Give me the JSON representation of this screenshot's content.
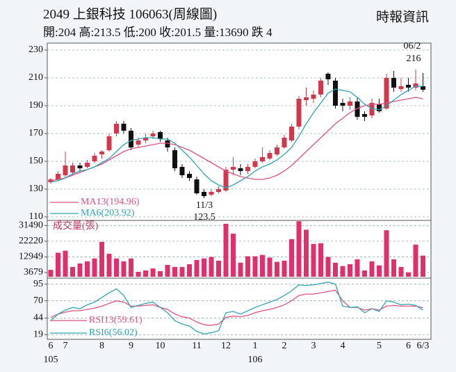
{
  "chart_data": [
    {
      "type": "candlestick",
      "title": "2049  上銀科技 106063(周線圖)",
      "subtitle": "開:204 高:213.5 低:200 收:201.5 量:13690 跌 4",
      "source": "時報資訊",
      "open": [
        135,
        137,
        140,
        142,
        147,
        146,
        150,
        155,
        158,
        170,
        177,
        172,
        162,
        165,
        168,
        171,
        165,
        158,
        146,
        141,
        137,
        128,
        126,
        128,
        129,
        144,
        145,
        143,
        146,
        150,
        152,
        155,
        160,
        165,
        175,
        194,
        195,
        198,
        213,
        208,
        192,
        190,
        193,
        184,
        183,
        191,
        188,
        210,
        202,
        205,
        203,
        204
      ],
      "high": [
        138,
        143,
        157,
        149,
        149,
        151,
        156,
        158,
        170,
        179,
        179,
        174,
        167,
        170,
        172,
        172,
        167,
        160,
        148,
        143,
        139,
        130,
        130,
        132,
        146,
        153,
        148,
        148,
        152,
        160,
        158,
        162,
        169,
        177,
        197,
        203,
        201,
        210,
        214,
        210,
        195,
        196,
        196,
        186,
        195,
        195,
        213,
        215,
        210,
        210,
        216,
        213.5
      ],
      "low": [
        134,
        136,
        138,
        140,
        143,
        145,
        149,
        152,
        157,
        168,
        170,
        158,
        160,
        163,
        166,
        164,
        157,
        143,
        138,
        136,
        126,
        123.5,
        125,
        127,
        128,
        140,
        140,
        141,
        145,
        149,
        151,
        154,
        159,
        164,
        173,
        190,
        192,
        196,
        205,
        188,
        186,
        187,
        180,
        179,
        181,
        185,
        187,
        200,
        200,
        200,
        201,
        200
      ],
      "close": [
        137,
        141,
        147,
        147,
        145,
        149,
        154,
        157,
        168,
        177,
        172,
        160,
        165,
        167,
        170,
        166,
        160,
        145,
        140,
        138,
        127,
        125,
        128,
        130,
        144,
        146,
        143,
        146,
        150,
        153,
        156,
        160,
        167,
        175,
        195,
        196,
        198,
        208,
        209,
        190,
        190,
        193,
        182,
        182,
        192,
        186,
        210,
        203,
        204,
        203,
        206,
        201.5
      ],
      "up_color": "#d2384c",
      "down_color": "#111111",
      "series": [
        {
          "name": "MA13(194.96)",
          "color": "#e05080",
          "values": [
            136,
            137,
            138,
            140,
            142,
            144,
            146,
            148,
            151,
            154,
            157,
            159,
            160,
            161,
            162,
            163,
            163,
            162,
            160,
            158,
            155,
            152,
            149,
            146,
            143,
            141,
            139,
            138,
            137,
            137,
            138,
            140,
            143,
            147,
            152,
            157,
            162,
            167,
            172,
            177,
            181,
            185,
            188,
            190,
            191,
            191,
            192,
            193,
            194,
            195,
            196,
            194.96
          ]
        },
        {
          "name": "MA6(203.92)",
          "color": "#2fa3b3",
          "values": [
            135,
            136,
            138,
            141,
            143,
            144,
            146,
            149,
            152,
            157,
            162,
            165,
            166,
            167,
            167,
            166,
            166,
            163,
            158,
            153,
            147,
            141,
            136,
            133,
            131,
            133,
            136,
            139,
            143,
            146,
            148,
            151,
            155,
            160,
            168,
            177,
            185,
            192,
            199,
            202,
            201,
            200,
            196,
            191,
            188,
            187,
            190,
            194,
            198,
            201,
            204,
            203.92
          ]
        }
      ],
      "annotations": [
        "06/2",
        "216",
        "11/3",
        "123.5"
      ],
      "ylim": [
        108,
        234
      ],
      "yticks": [
        110,
        130,
        150,
        170,
        190,
        210,
        230
      ],
      "grid": true
    },
    {
      "type": "bar",
      "title": "成交量(張)",
      "color": "#e0306c",
      "values": [
        5300,
        15400,
        16600,
        7000,
        9000,
        10300,
        12000,
        21800,
        14800,
        12000,
        10300,
        12000,
        4100,
        4900,
        6100,
        4500,
        8200,
        7000,
        7000,
        8600,
        11100,
        12000,
        12900,
        10700,
        32500,
        26700,
        9500,
        13300,
        13300,
        14100,
        12500,
        10000,
        10700,
        23400,
        34000,
        29000,
        20600,
        21000,
        12900,
        9500,
        7500,
        8600,
        11500,
        4900,
        10300,
        7900,
        28700,
        11500,
        7000,
        3800,
        20200,
        13690
      ],
      "ylim": [
        1200,
        34500
      ],
      "yticks": [
        3679,
        12949,
        22220,
        31490
      ],
      "grid": true
    },
    {
      "type": "line",
      "categories": [
        "6",
        null,
        "7",
        null,
        null,
        null,
        null,
        "8",
        null,
        null,
        null,
        "9",
        null,
        null,
        null,
        "10",
        null,
        null,
        null,
        null,
        "11",
        null,
        null,
        null,
        "12",
        null,
        null,
        null,
        "1",
        null,
        null,
        null,
        "2",
        null,
        null,
        null,
        "3",
        null,
        null,
        null,
        "4",
        null,
        null,
        null,
        null,
        "5",
        null,
        null,
        null,
        "6",
        null,
        "6/3"
      ],
      "years": [
        "105",
        null,
        null,
        null,
        null,
        null,
        null,
        null,
        null,
        null,
        null,
        null,
        null,
        null,
        null,
        null,
        null,
        null,
        null,
        null,
        null,
        null,
        null,
        null,
        null,
        null,
        null,
        null,
        "106",
        null,
        null,
        null,
        null,
        null,
        null,
        null,
        null,
        null,
        null,
        null,
        null,
        null,
        null,
        null,
        null,
        null,
        null,
        null,
        null,
        null,
        null,
        null
      ],
      "series": [
        {
          "name": "RSI13(59.61)",
          "color": "#e05080",
          "values": [
            45,
            50,
            53,
            55,
            55,
            57,
            59,
            62,
            66,
            70,
            68,
            62,
            62,
            63,
            64,
            60,
            57,
            50,
            46,
            44,
            38,
            34,
            33,
            35,
            45,
            47,
            46,
            48,
            52,
            55,
            57,
            60,
            64,
            70,
            78,
            80,
            80,
            82,
            84,
            86,
            70,
            60,
            60,
            56,
            58,
            56,
            62,
            63,
            62,
            62,
            62,
            59.61
          ]
        },
        {
          "name": "RSI6(56.02)",
          "color": "#2fa3b3",
          "values": [
            40,
            50,
            56,
            60,
            58,
            64,
            68,
            75,
            82,
            88,
            78,
            60,
            63,
            66,
            68,
            60,
            52,
            40,
            35,
            32,
            24,
            20,
            22,
            25,
            52,
            54,
            50,
            55,
            60,
            64,
            68,
            72,
            78,
            85,
            94,
            93,
            94,
            96,
            98,
            95,
            62,
            60,
            61,
            52,
            58,
            54,
            70,
            68,
            64,
            65,
            63,
            56.02
          ]
        }
      ],
      "ylim": [
        12,
        102
      ],
      "yticks": [
        19,
        44,
        70,
        95
      ],
      "grid": true
    }
  ]
}
